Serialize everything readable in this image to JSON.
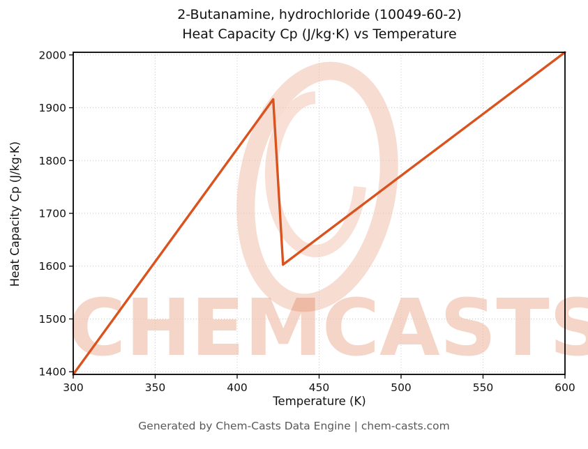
{
  "title": {
    "line1": "2-Butanamine, hydrochloride (10049-60-2)",
    "line2": "Heat Capacity Cp (J/kg·K) vs Temperature"
  },
  "watermark": {
    "text": "CHEMCASTS"
  },
  "footer": "Generated by Chem-Casts Data Engine | chem-casts.com",
  "chart_data": {
    "type": "line",
    "title": "2-Butanamine, hydrochloride (10049-60-2) — Heat Capacity Cp (J/kg·K) vs Temperature",
    "xlabel": "Temperature (K)",
    "ylabel": "Heat Capacity Cp (J/kg·K)",
    "xlim": [
      300,
      600
    ],
    "ylim": [
      1395,
      2005
    ],
    "x_ticks": [
      300,
      350,
      400,
      450,
      500,
      550,
      600
    ],
    "y_ticks": [
      1400,
      1500,
      1600,
      1700,
      1800,
      1900,
      2000
    ],
    "grid": true,
    "grid_style": "dotted",
    "legend": "none",
    "line_color": "#d9531e",
    "watermark_color": "#d9531e",
    "series": [
      {
        "name": "Heat Capacity Cp",
        "x": [
          300,
          422,
          428,
          600
        ],
        "y": [
          1395,
          1916,
          1603,
          2005
        ]
      }
    ]
  }
}
